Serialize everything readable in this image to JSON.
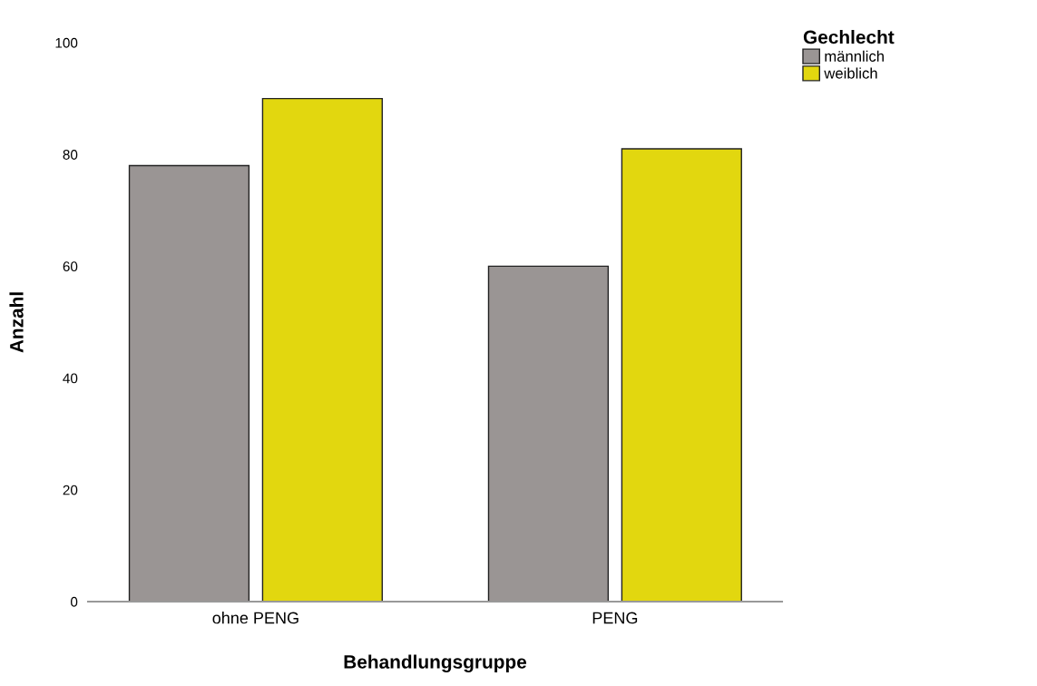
{
  "chart_data": {
    "type": "bar",
    "xlabel": "Behandlungsgruppe",
    "ylabel": "Anzahl",
    "legend_title": "Gechlecht",
    "categories": [
      "ohne PENG",
      "PENG"
    ],
    "series": [
      {
        "name": "männlich",
        "color": "#9a9594",
        "values": [
          78,
          60
        ]
      },
      {
        "name": "weiblich",
        "color": "#e2d70f",
        "values": [
          90,
          81
        ]
      }
    ],
    "ylim": [
      0,
      100
    ],
    "yticks": [
      0,
      20,
      40,
      60,
      80,
      100
    ],
    "grid": false,
    "legend": "top right"
  }
}
